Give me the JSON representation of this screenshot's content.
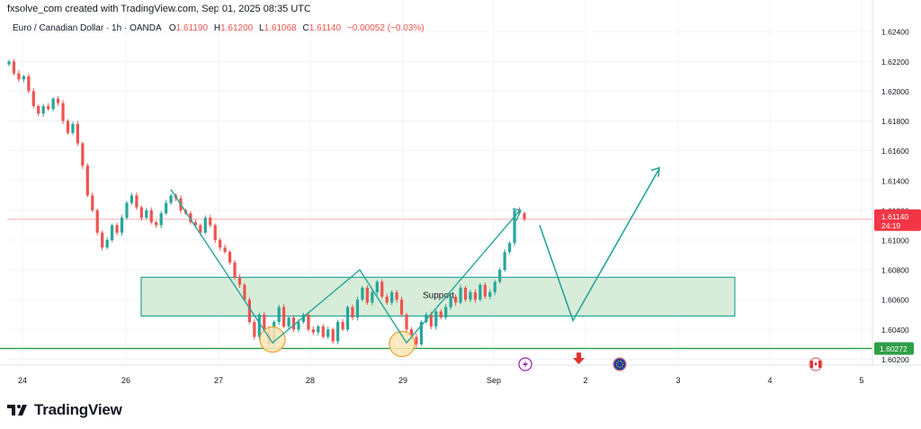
{
  "watermark": "fxsolve_com created with TradingView.com, Sep 01, 2025 08:35 UTC",
  "brand": "TradingView",
  "legend": {
    "symbol": "Euro / Canadian Dollar · 1h · OANDA",
    "open_label": "O",
    "open": "1.61190",
    "high_label": "H",
    "high": "1.61200",
    "low_label": "L",
    "low": "1.61068",
    "close_label": "C",
    "close": "1.61140",
    "change": "−0.00052 (−0.03%)"
  },
  "colors": {
    "up": "#26a69a",
    "down": "#ef5350",
    "zone_fill": "#c8e6c9",
    "zone_stroke": "#26a69a",
    "projection": "#26a69a",
    "support_line": "#2e9e47",
    "price_badge": "#f23645",
    "support_badge": "#2e9e47",
    "circle_fill": "#fbe5b6",
    "circle_stroke": "#f0a030"
  },
  "price_badge": {
    "value": "1.61140",
    "countdown": "24:19"
  },
  "support_level_badge": "1.60272",
  "zone_label": "Support",
  "event_icons": [
    "lightning-event-icon",
    "dividend-down-arrow-icon",
    "eu-flag-event-icon",
    "canada-flag-event-icon"
  ],
  "chart_data": {
    "type": "candlestick",
    "title": "",
    "xlabel": "",
    "ylabel": "",
    "x_ticks": [
      "24",
      "26",
      "27",
      "28",
      "29",
      "Sep",
      "2",
      "3",
      "4",
      "5"
    ],
    "y_ticks": [
      "1.62400",
      "1.62200",
      "1.62000",
      "1.61800",
      "1.61600",
      "1.61400",
      "1.61200",
      "1.61000",
      "1.60800",
      "1.60600",
      "1.60400",
      "1.60200"
    ],
    "ylim": [
      1.6016,
      1.6248
    ],
    "grid": true,
    "last_price": 1.6114,
    "support_level": 1.60272,
    "support_zone": [
      1.6049,
      1.6075
    ],
    "candles_close": [
      1.622,
      1.6212,
      1.6208,
      1.621,
      1.62,
      1.619,
      1.6185,
      1.619,
      1.6188,
      1.6195,
      1.6192,
      1.618,
      1.6172,
      1.6178,
      1.6165,
      1.615,
      1.613,
      1.612,
      1.6105,
      1.6095,
      1.61,
      1.611,
      1.6105,
      1.6115,
      1.6125,
      1.613,
      1.6122,
      1.6115,
      1.612,
      1.6112,
      1.611,
      1.6118,
      1.6125,
      1.613,
      1.6128,
      1.612,
      1.6118,
      1.6112,
      1.611,
      1.6105,
      1.6115,
      1.611,
      1.61,
      1.6095,
      1.6092,
      1.6085,
      1.6075,
      1.607,
      1.606,
      1.6045,
      1.6035,
      1.605,
      1.604,
      1.603,
      1.6045,
      1.6055,
      1.6042,
      1.6048,
      1.604,
      1.6045,
      1.605,
      1.604,
      1.6038,
      1.6042,
      1.6035,
      1.604,
      1.6032,
      1.6045,
      1.604,
      1.6055,
      1.6048,
      1.606,
      1.6068,
      1.6058,
      1.6065,
      1.6072,
      1.6062,
      1.6058,
      1.6065,
      1.606,
      1.605,
      1.604,
      1.6035,
      1.603,
      1.6045,
      1.605,
      1.6042,
      1.6052,
      1.6048,
      1.6055,
      1.6062,
      1.6058,
      1.6068,
      1.606,
      1.6065,
      1.606,
      1.607,
      1.6062,
      1.6065,
      1.6072,
      1.608,
      1.6092,
      1.6098,
      1.612,
      1.6118,
      1.6114
    ],
    "support_touches": [
      {
        "label": "27",
        "price": 1.6032
      },
      {
        "label": "29",
        "price": 1.6029
      }
    ],
    "projection_path": [
      {
        "t": "Sep +0.5",
        "price": 1.611
      },
      {
        "t": "2",
        "price": 1.6046
      },
      {
        "t": "3",
        "price": 1.6148
      }
    ]
  }
}
